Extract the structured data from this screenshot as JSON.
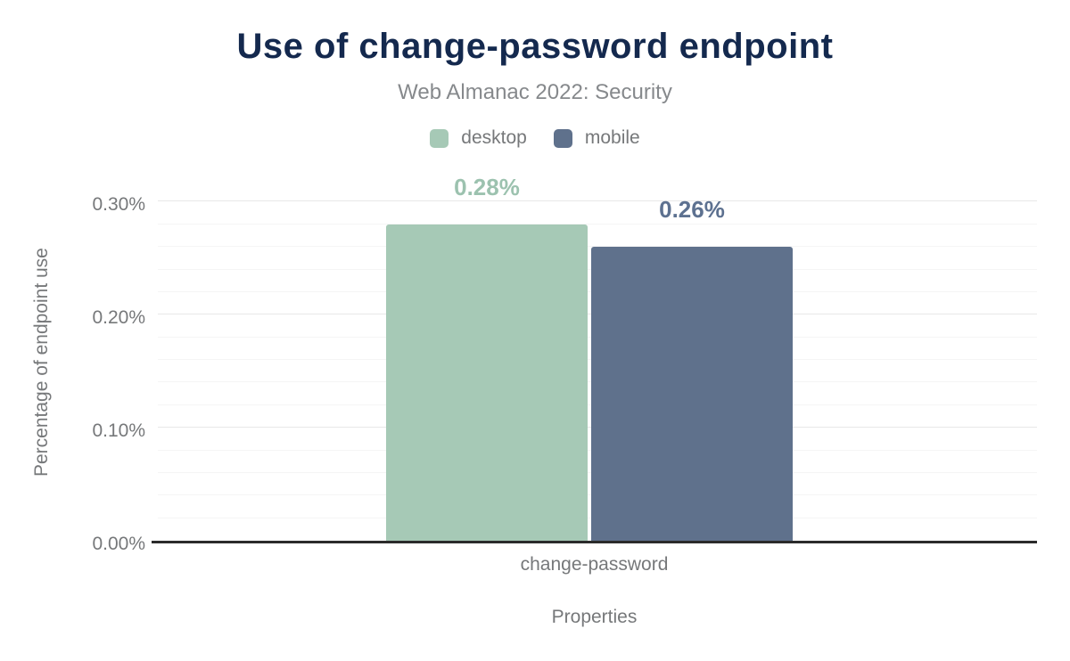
{
  "chart_data": {
    "type": "bar",
    "title": "Use of change-password endpoint",
    "subtitle": "Web Almanac 2022: Security",
    "xlabel": "Properties",
    "ylabel": "Percentage of endpoint use",
    "categories": [
      "change-password"
    ],
    "series": [
      {
        "name": "desktop",
        "values": [
          0.28
        ],
        "labels": [
          "0.28%"
        ],
        "color": "#a6c9b6",
        "label_color": "#9cc2af"
      },
      {
        "name": "mobile",
        "values": [
          0.26
        ],
        "labels": [
          "0.26%"
        ],
        "color": "#5f718c",
        "label_color": "#5d7190"
      }
    ],
    "ylim": [
      0,
      0.32
    ],
    "yticks": [
      {
        "value": 0.0,
        "label": "0.00%"
      },
      {
        "value": 0.1,
        "label": "0.10%"
      },
      {
        "value": 0.2,
        "label": "0.20%"
      },
      {
        "value": 0.3,
        "label": "0.30%"
      }
    ],
    "minor_tick_interval": 0.02,
    "major_tick_interval": 0.1,
    "grid": true,
    "legend_position": "top",
    "colors": {
      "title": "#14294e",
      "subtitle": "#86898c",
      "axis_text": "#76787a",
      "grid_major": "#e8e8e8",
      "grid_minor": "#f5f5f5",
      "axis_line": "#2b2b2b",
      "background": "#ffffff"
    }
  }
}
